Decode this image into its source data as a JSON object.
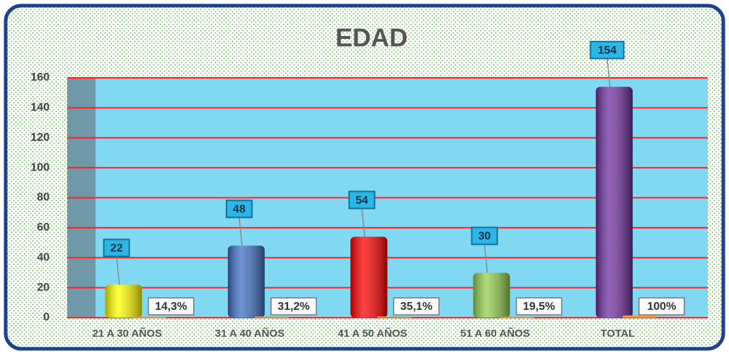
{
  "chart_data": {
    "type": "bar",
    "title": "EDAD",
    "categories": [
      "21 A 30 AÑOS",
      "31 A 40 AÑOS",
      "41 A 50 AÑOS",
      "51 A 60 AÑOS",
      "TOTAL"
    ],
    "series": [
      {
        "colors": [
          "#ffff00",
          "#3f6fc4",
          "#ff0000",
          "#92d050",
          "#7030a0"
        ],
        "values": [
          22,
          48,
          54,
          30,
          154
        ]
      },
      {
        "color": "#f79646",
        "values": [
          0.143,
          0.312,
          0.351,
          0.195,
          1
        ],
        "value_labels": [
          "14,3%",
          "31,2%",
          "35,1%",
          "19,5%",
          "100%"
        ]
      }
    ],
    "ylim": [
      0,
      160
    ],
    "yticks": [
      0,
      20,
      40,
      60,
      80,
      100,
      120,
      140,
      160
    ],
    "grid": true,
    "grid_color": "#ff2020",
    "plot_color": "#80d8f2"
  }
}
